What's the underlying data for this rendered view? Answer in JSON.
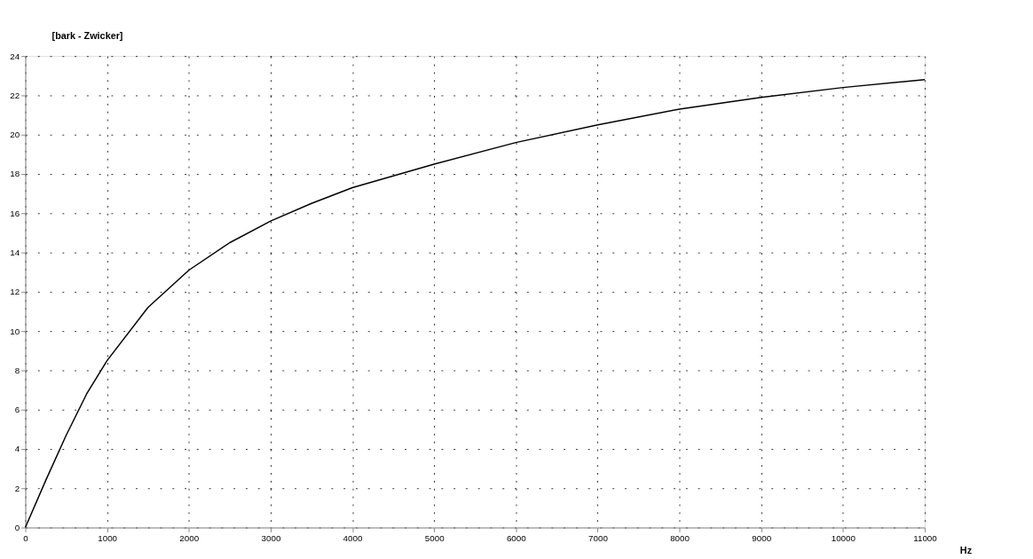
{
  "chart_data": {
    "type": "line",
    "ylabel": "[bark - Zwicker]",
    "xlabel": "Hz",
    "x": [
      0,
      250,
      500,
      750,
      1000,
      1500,
      2000,
      2500,
      3000,
      3500,
      4000,
      5000,
      6000,
      7000,
      8000,
      9000,
      10000,
      11000
    ],
    "series": [
      {
        "color": "#000000",
        "values": [
          0,
          2.4,
          4.7,
          6.8,
          8.5,
          11.2,
          13.1,
          14.5,
          15.6,
          16.5,
          17.3,
          18.5,
          19.6,
          20.5,
          21.3,
          21.9,
          22.4,
          22.8
        ]
      }
    ],
    "xlim": [
      0,
      11000
    ],
    "xticks": [
      0,
      1000,
      2000,
      3000,
      4000,
      5000,
      6000,
      7000,
      8000,
      9000,
      10000,
      11000
    ],
    "ylim": [
      0,
      24
    ],
    "yticks": [
      0,
      2,
      4,
      6,
      8,
      10,
      12,
      14,
      16,
      18,
      20,
      22,
      24
    ],
    "grid": true,
    "marker": "none",
    "line_style": "solid"
  }
}
